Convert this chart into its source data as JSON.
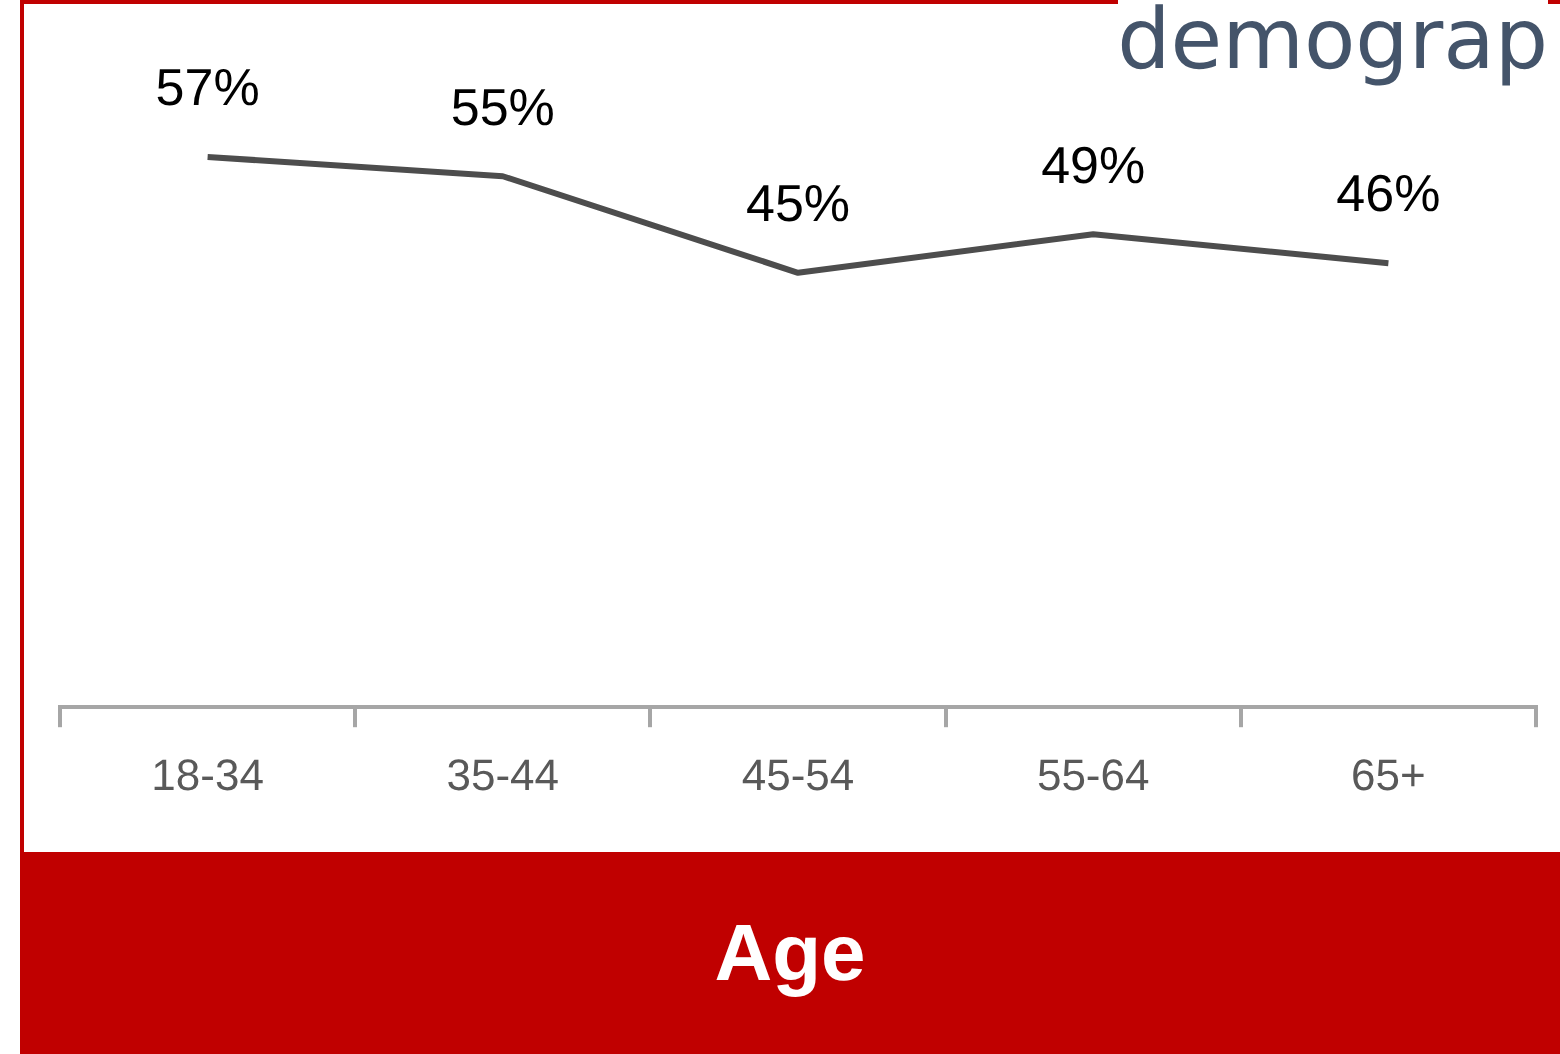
{
  "chart_data": {
    "type": "line",
    "title": "demograp",
    "xlabel": "Age",
    "categories": [
      "18-34",
      "35-44",
      "45-54",
      "55-64",
      "65+"
    ],
    "series": [
      {
        "color": "#4d4d4d",
        "values": [
          57,
          55,
          45,
          49,
          46
        ],
        "value_labels": [
          "57%",
          "55%",
          "45%",
          "49%",
          "46%"
        ]
      }
    ],
    "marker": "none"
  }
}
